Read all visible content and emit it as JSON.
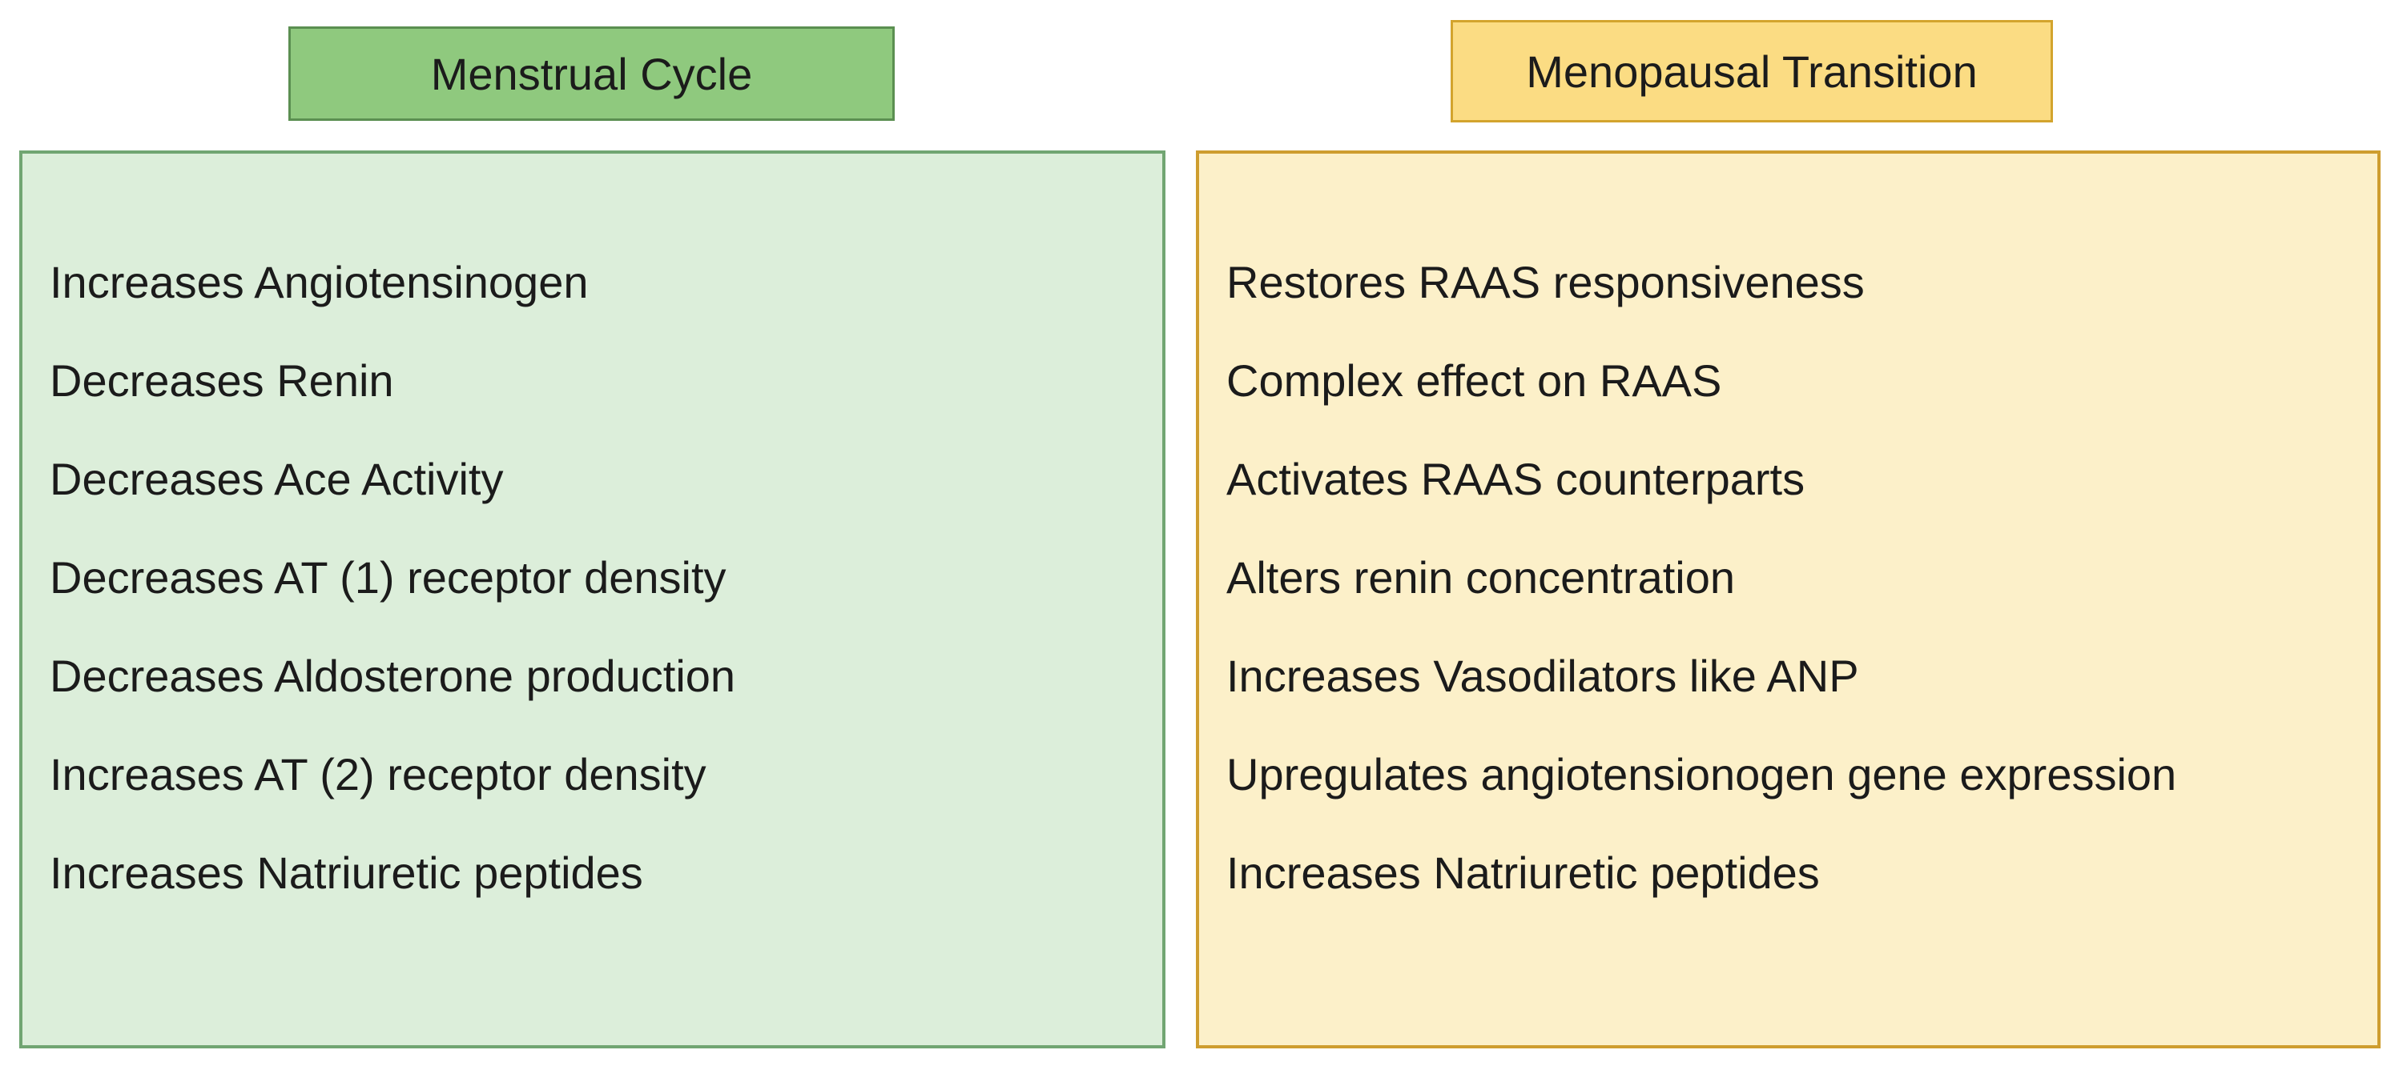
{
  "page": {
    "background": "#ffffff",
    "text_color": "#1b1b1b"
  },
  "left_panel": {
    "header": {
      "label": "Menstrual Cycle",
      "fill": "#8FC97E",
      "border": "#5B8F51"
    },
    "body": {
      "fill": "#DCEEDA",
      "border": "#71A572"
    },
    "items": [
      "Increases Angiotensinogen",
      "Decreases Renin",
      "Decreases Ace Activity",
      "Decreases AT (1) receptor density",
      "Decreases Aldosterone production",
      "Increases AT (2) receptor density",
      "Increases Natriuretic peptides"
    ]
  },
  "right_panel": {
    "header": {
      "label": "Menopausal Transition",
      "fill": "#FBDC83",
      "border": "#D3A42D"
    },
    "body": {
      "fill": "#FCF0C9",
      "border": "#CE9D2F"
    },
    "items": [
      "Restores RAAS responsiveness",
      "Complex effect on RAAS",
      "Activates RAAS counterparts",
      "Alters renin concentration",
      "Increases Vasodilators like ANP",
      "Upregulates angiotensionogen gene expression",
      "Increases Natriuretic peptides"
    ]
  }
}
